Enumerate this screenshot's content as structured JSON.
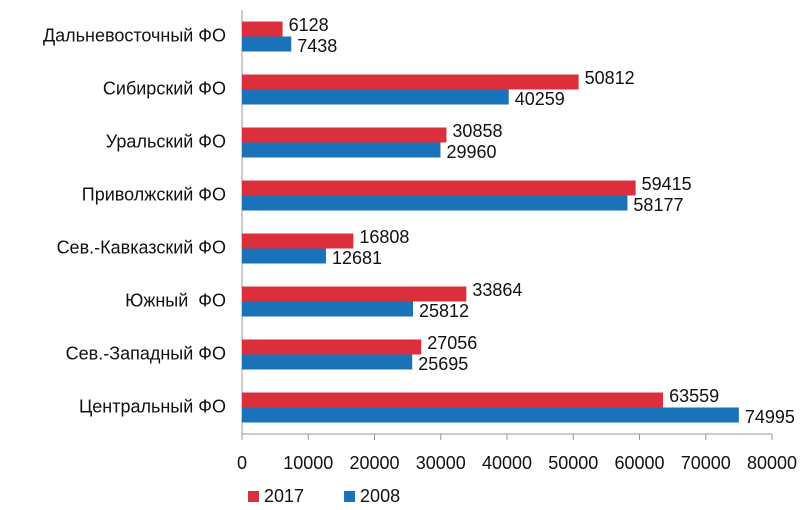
{
  "chart_data": {
    "type": "hbar",
    "categories": [
      "Дальневосточный ФО",
      "Сибирский ФО",
      "Уральский ФО",
      "Приволжский ФО",
      "Сев.-Кавказский ФО",
      "Южный  ФО",
      "Сев.-Западный ФО",
      "Центральный ФО"
    ],
    "series": [
      {
        "name": "2017",
        "color": "#dc2f3c",
        "values": [
          6128,
          50812,
          30858,
          59415,
          16808,
          33864,
          27056,
          63559
        ]
      },
      {
        "name": "2008",
        "color": "#1a72b8",
        "values": [
          7438,
          40259,
          29960,
          58177,
          12681,
          25812,
          25695,
          74995
        ]
      }
    ],
    "xlim": [
      0,
      80000
    ],
    "xticks": [
      0,
      10000,
      20000,
      30000,
      40000,
      50000,
      60000,
      70000,
      80000
    ],
    "grid": false,
    "legend": "bottom"
  }
}
